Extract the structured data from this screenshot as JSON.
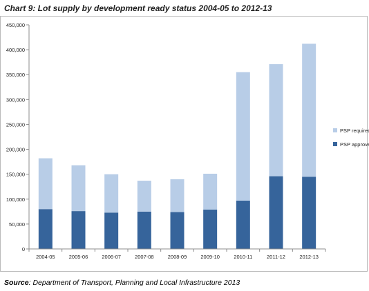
{
  "title": "Chart 9: Lot supply by development ready status 2004-05 to 2012-13",
  "source": {
    "label": "Source",
    "text": ": Department of Transport, Planning and Local Infrastructure 2013"
  },
  "chart_data": {
    "type": "bar",
    "stacked": true,
    "categories": [
      "2004-05",
      "2005-06",
      "2006-07",
      "2007-08",
      "2008-09",
      "2009-10",
      "2010-11",
      "2011-12",
      "2012-13"
    ],
    "series": [
      {
        "name": "PSP approved",
        "color": "#36649b",
        "values": [
          80000,
          76000,
          73000,
          75000,
          74000,
          79000,
          97000,
          146000,
          145000
        ]
      },
      {
        "name": "PSP required",
        "color": "#b8cde7",
        "values": [
          102000,
          92000,
          77000,
          62000,
          66000,
          72000,
          258000,
          225000,
          267000
        ]
      }
    ],
    "yticks": [
      "0",
      "50,000",
      "100,000",
      "150,000",
      "200,000",
      "250,000",
      "300,000",
      "350,000",
      "400,000",
      "450,000"
    ],
    "ylim": [
      0,
      450000
    ],
    "grid": false,
    "legend_position": "right",
    "legend": [
      {
        "label": "PSP required",
        "color": "#b8cde7"
      },
      {
        "label": "PSP approved",
        "color": "#36649b"
      }
    ]
  }
}
